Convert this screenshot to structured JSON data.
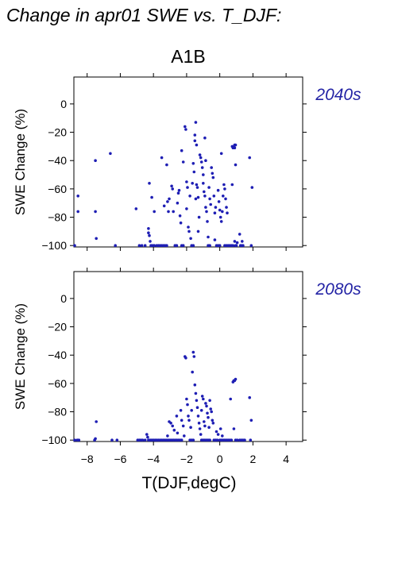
{
  "header": {
    "title": "Change in apr01 SWE vs. T_DJF:",
    "subtitle": "A1B"
  },
  "colors": {
    "point": "#1e1eb4",
    "period_label": "#2323a5",
    "axis": "#000000"
  },
  "chart_data": [
    {
      "type": "scatter",
      "title": "2040s",
      "xlabel": "",
      "ylabel": "SWE Change (%)",
      "xlim": [
        -8.8,
        5.0
      ],
      "ylim": [
        -101,
        19
      ],
      "xticks": [
        -8,
        -6,
        -4,
        -2,
        0,
        2,
        4
      ],
      "yticks": [
        0,
        -20,
        -40,
        -60,
        -80,
        -100
      ],
      "ytick_labels": [
        "0",
        "−20",
        "−40",
        "−60",
        "−80",
        "−100"
      ],
      "xtick_labels": [],
      "points": [
        [
          -8.75,
          -100
        ],
        [
          -8.55,
          -65
        ],
        [
          -8.55,
          -76
        ],
        [
          -7.5,
          -40
        ],
        [
          -7.5,
          -76
        ],
        [
          -7.45,
          -95
        ],
        [
          -6.6,
          -35
        ],
        [
          -6.3,
          -100
        ],
        [
          -5.05,
          -74
        ],
        [
          -4.85,
          -100
        ],
        [
          -4.7,
          -100
        ],
        [
          -4.5,
          -100
        ],
        [
          -4.3,
          -88
        ],
        [
          -4.3,
          -91
        ],
        [
          -4.25,
          -93
        ],
        [
          -4.2,
          -97
        ],
        [
          -4.15,
          -100
        ],
        [
          -4.1,
          -100
        ],
        [
          -4.0,
          -100
        ],
        [
          -3.95,
          -100
        ],
        [
          -4.25,
          -56
        ],
        [
          -4.1,
          -66
        ],
        [
          -3.95,
          -76
        ],
        [
          -3.8,
          -100
        ],
        [
          -3.7,
          -100
        ],
        [
          -3.6,
          -100
        ],
        [
          -3.5,
          -100
        ],
        [
          -3.4,
          -100
        ],
        [
          -3.3,
          -100
        ],
        [
          -3.2,
          -100
        ],
        [
          -3.35,
          -72
        ],
        [
          -3.5,
          -38
        ],
        [
          -3.2,
          -43
        ],
        [
          -3.15,
          -69
        ],
        [
          -3.1,
          -76
        ],
        [
          -3.05,
          -67
        ],
        [
          -2.9,
          -58
        ],
        [
          -2.85,
          -60
        ],
        [
          -2.8,
          -76
        ],
        [
          -2.7,
          -100
        ],
        [
          -2.6,
          -100
        ],
        [
          -2.55,
          -70
        ],
        [
          -2.5,
          -63
        ],
        [
          -2.45,
          -61
        ],
        [
          -2.4,
          -79
        ],
        [
          -2.35,
          -84
        ],
        [
          -2.3,
          -100
        ],
        [
          -2.2,
          -100
        ],
        [
          -2.3,
          -33
        ],
        [
          -2.2,
          -41
        ],
        [
          -2.1,
          -16
        ],
        [
          -2.05,
          -18
        ],
        [
          -2.0,
          -55
        ],
        [
          -1.95,
          -59
        ],
        [
          -2.0,
          -74
        ],
        [
          -1.9,
          -87
        ],
        [
          -1.85,
          -90
        ],
        [
          -1.8,
          -65
        ],
        [
          -1.75,
          -95
        ],
        [
          -1.7,
          -100
        ],
        [
          -1.6,
          -100
        ],
        [
          -1.65,
          -56
        ],
        [
          -1.6,
          -42
        ],
        [
          -1.55,
          -48
        ],
        [
          -1.5,
          -26
        ],
        [
          -1.5,
          -22
        ],
        [
          -1.45,
          -13
        ],
        [
          -1.4,
          -29
        ],
        [
          -1.45,
          -67
        ],
        [
          -1.4,
          -57
        ],
        [
          -1.35,
          -59
        ],
        [
          -1.3,
          -66
        ],
        [
          -1.25,
          -80
        ],
        [
          -1.3,
          -90
        ],
        [
          -1.2,
          -36
        ],
        [
          -1.15,
          -38
        ],
        [
          -1.1,
          -41
        ],
        [
          -1.05,
          -45
        ],
        [
          -1.0,
          -50
        ],
        [
          -1.0,
          -56
        ],
        [
          -0.95,
          -62
        ],
        [
          -0.9,
          -65
        ],
        [
          -0.85,
          -73
        ],
        [
          -0.8,
          -76
        ],
        [
          -0.75,
          -83
        ],
        [
          -0.7,
          -94
        ],
        [
          -0.7,
          -100
        ],
        [
          -0.6,
          -100
        ],
        [
          -0.9,
          -24
        ],
        [
          -0.85,
          -40
        ],
        [
          -0.65,
          -59
        ],
        [
          -0.6,
          -67
        ],
        [
          -0.55,
          -71
        ],
        [
          -0.5,
          -45
        ],
        [
          -0.45,
          -49
        ],
        [
          -0.4,
          -52
        ],
        [
          -0.35,
          -65
        ],
        [
          -0.3,
          -77
        ],
        [
          -0.3,
          -96
        ],
        [
          -0.25,
          -73
        ],
        [
          -0.2,
          -100
        ],
        [
          -0.1,
          -100
        ],
        [
          0.0,
          -100
        ],
        [
          -0.1,
          -61
        ],
        [
          -0.05,
          -69
        ],
        [
          0.0,
          -75
        ],
        [
          0.05,
          -80
        ],
        [
          0.1,
          -83
        ],
        [
          0.15,
          -76
        ],
        [
          0.2,
          -65
        ],
        [
          0.1,
          -35
        ],
        [
          0.25,
          -57
        ],
        [
          0.3,
          -60
        ],
        [
          0.35,
          -67
        ],
        [
          0.3,
          -100
        ],
        [
          0.4,
          -100
        ],
        [
          0.5,
          -100
        ],
        [
          0.4,
          -73
        ],
        [
          0.45,
          -77
        ],
        [
          0.6,
          -100
        ],
        [
          0.7,
          -100
        ],
        [
          0.75,
          -30
        ],
        [
          0.8,
          -31
        ],
        [
          0.85,
          -30
        ],
        [
          0.9,
          -31
        ],
        [
          0.9,
          -29
        ],
        [
          0.95,
          -29
        ],
        [
          0.95,
          -43
        ],
        [
          0.75,
          -57
        ],
        [
          0.8,
          -100
        ],
        [
          0.9,
          -97
        ],
        [
          0.95,
          -100
        ],
        [
          1.0,
          -100
        ],
        [
          1.05,
          -98
        ],
        [
          1.2,
          -92
        ],
        [
          1.25,
          -100
        ],
        [
          1.3,
          -100
        ],
        [
          1.35,
          -97
        ],
        [
          1.4,
          -100
        ],
        [
          1.8,
          -38
        ],
        [
          1.95,
          -59
        ],
        [
          1.9,
          -100
        ]
      ]
    },
    {
      "type": "scatter",
      "title": "2080s",
      "xlabel": "T(DJF,degC)",
      "ylabel": "SWE Change (%)",
      "xlim": [
        -8.8,
        5.0
      ],
      "ylim": [
        -101,
        19
      ],
      "xticks": [
        -8,
        -6,
        -4,
        -2,
        0,
        2,
        4
      ],
      "yticks": [
        0,
        -20,
        -40,
        -60,
        -80,
        -100
      ],
      "ytick_labels": [
        "0",
        "−20",
        "−40",
        "−60",
        "−80",
        "−100"
      ],
      "xtick_labels": [
        "−8",
        "−6",
        "−4",
        "−2",
        "0",
        "2",
        "4"
      ],
      "points": [
        [
          -8.75,
          -100
        ],
        [
          -8.6,
          -100
        ],
        [
          -8.5,
          -100
        ],
        [
          -7.55,
          -100
        ],
        [
          -7.5,
          -99
        ],
        [
          -7.45,
          -87
        ],
        [
          -6.5,
          -100
        ],
        [
          -6.2,
          -100
        ],
        [
          -4.95,
          -100
        ],
        [
          -4.85,
          -100
        ],
        [
          -4.75,
          -100
        ],
        [
          -4.65,
          -100
        ],
        [
          -4.5,
          -100
        ],
        [
          -4.4,
          -96
        ],
        [
          -4.35,
          -98
        ],
        [
          -4.3,
          -100
        ],
        [
          -4.2,
          -100
        ],
        [
          -4.1,
          -100
        ],
        [
          -4.0,
          -100
        ],
        [
          -3.9,
          -100
        ],
        [
          -3.8,
          -100
        ],
        [
          -3.7,
          -100
        ],
        [
          -3.6,
          -100
        ],
        [
          -3.5,
          -100
        ],
        [
          -3.4,
          -100
        ],
        [
          -3.3,
          -100
        ],
        [
          -3.2,
          -100
        ],
        [
          -3.1,
          -100
        ],
        [
          -3.0,
          -100
        ],
        [
          -2.9,
          -100
        ],
        [
          -3.15,
          -97
        ],
        [
          -3.05,
          -87
        ],
        [
          -2.95,
          -88
        ],
        [
          -2.85,
          -90
        ],
        [
          -2.8,
          -100
        ],
        [
          -2.7,
          -100
        ],
        [
          -2.6,
          -100
        ],
        [
          -2.75,
          -93
        ],
        [
          -2.6,
          -83
        ],
        [
          -2.55,
          -95
        ],
        [
          -2.5,
          -100
        ],
        [
          -2.4,
          -100
        ],
        [
          -2.3,
          -100
        ],
        [
          -2.35,
          -79
        ],
        [
          -2.3,
          -86
        ],
        [
          -2.2,
          -90
        ],
        [
          -2.15,
          -97
        ],
        [
          -2.1,
          -41
        ],
        [
          -2.05,
          -42
        ],
        [
          -2.0,
          -71
        ],
        [
          -1.95,
          -75
        ],
        [
          -1.9,
          -83
        ],
        [
          -1.85,
          -86
        ],
        [
          -1.8,
          -100
        ],
        [
          -1.7,
          -100
        ],
        [
          -1.6,
          -100
        ],
        [
          -1.75,
          -91
        ],
        [
          -1.7,
          -79
        ],
        [
          -1.65,
          -52
        ],
        [
          -1.6,
          -38
        ],
        [
          -1.55,
          -41
        ],
        [
          -1.5,
          -61
        ],
        [
          -1.45,
          -67
        ],
        [
          -1.4,
          -72
        ],
        [
          -1.35,
          -77
        ],
        [
          -1.3,
          -83
        ],
        [
          -1.25,
          -88
        ],
        [
          -1.2,
          -92
        ],
        [
          -1.15,
          -96
        ],
        [
          -1.1,
          -100
        ],
        [
          -1.0,
          -100
        ],
        [
          -0.9,
          -100
        ],
        [
          -1.1,
          -79
        ],
        [
          -1.05,
          -69
        ],
        [
          -1.0,
          -71
        ],
        [
          -0.95,
          -87
        ],
        [
          -0.9,
          -90
        ],
        [
          -0.85,
          -74
        ],
        [
          -0.8,
          -76
        ],
        [
          -0.75,
          -81
        ],
        [
          -0.7,
          -84
        ],
        [
          -0.8,
          -100
        ],
        [
          -0.7,
          -100
        ],
        [
          -0.6,
          -100
        ],
        [
          -0.65,
          -91
        ],
        [
          -0.6,
          -72
        ],
        [
          -0.55,
          -78
        ],
        [
          -0.5,
          -80
        ],
        [
          -0.45,
          -86
        ],
        [
          -0.4,
          -88
        ],
        [
          -0.35,
          -100
        ],
        [
          -0.25,
          -100
        ],
        [
          -0.15,
          -100
        ],
        [
          -0.2,
          -94
        ],
        [
          -0.1,
          -96
        ],
        [
          0.0,
          -100
        ],
        [
          0.1,
          -100
        ],
        [
          0.05,
          -92
        ],
        [
          0.15,
          -97
        ],
        [
          0.2,
          -100
        ],
        [
          0.3,
          -100
        ],
        [
          0.4,
          -100
        ],
        [
          0.5,
          -100
        ],
        [
          0.6,
          -100
        ],
        [
          0.7,
          -100
        ],
        [
          0.8,
          -59
        ],
        [
          0.85,
          -58
        ],
        [
          0.9,
          -58
        ],
        [
          0.95,
          -57
        ],
        [
          0.85,
          -92
        ],
        [
          0.95,
          -100
        ],
        [
          1.05,
          -100
        ],
        [
          1.2,
          -100
        ],
        [
          1.3,
          -100
        ],
        [
          1.4,
          -100
        ],
        [
          1.5,
          -100
        ],
        [
          0.65,
          -71
        ],
        [
          1.8,
          -70
        ],
        [
          1.9,
          -86
        ],
        [
          1.85,
          -100
        ]
      ]
    }
  ]
}
